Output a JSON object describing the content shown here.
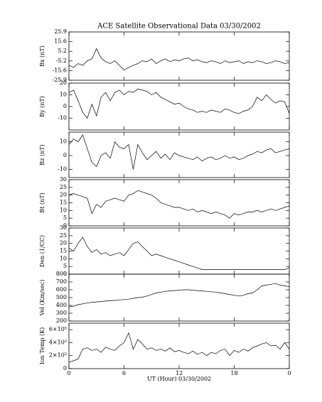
{
  "chart_data": {
    "title": "ACE Satellite Observational Data   03/30/2002",
    "xlabel": "UT (Hour)   03/30/2002",
    "xlim": [
      0,
      24
    ],
    "xticks": [
      0,
      6,
      12,
      18,
      {
        "value": 24,
        "label": "0"
      }
    ],
    "x": [
      0,
      0.5,
      1,
      1.5,
      2,
      2.5,
      3,
      3.5,
      4,
      4.5,
      5,
      5.5,
      6,
      6.5,
      7,
      7.5,
      8,
      8.5,
      9,
      9.5,
      10,
      10.5,
      11,
      11.5,
      12,
      12.5,
      13,
      13.5,
      14,
      14.5,
      15,
      15.5,
      16,
      16.5,
      17,
      17.5,
      18,
      18.5,
      19,
      19.5,
      20,
      20.5,
      21,
      21.5,
      22,
      22.5,
      23,
      23.5,
      24
    ],
    "panels": [
      {
        "type": "line",
        "ylabel": "Bx (nT)",
        "color": "#000000",
        "ylim": [
          -25.9,
          25.9
        ],
        "yticks": [
          -25.9,
          -15.6,
          -5.2,
          5.2,
          15.6,
          25.9
        ],
        "values": [
          -10,
          -12,
          -8,
          -10,
          -5,
          -3,
          8,
          -2,
          -6,
          -8,
          -5,
          -10,
          -15,
          -12,
          -10,
          -8,
          -5,
          -6,
          -3,
          -8,
          -5,
          -3,
          -6,
          -4,
          -5,
          -3,
          -2,
          -5,
          -4,
          -6,
          -7,
          -5,
          -6,
          -8,
          -5,
          -7,
          -6,
          -5,
          -8,
          -6,
          -7,
          -5,
          -6,
          -8,
          -7,
          -5,
          -6,
          -8,
          -7
        ]
      },
      {
        "type": "line",
        "ylabel": "By (nT)",
        "color": "#000000",
        "ylim": [
          -20,
          20
        ],
        "yticks": [
          -10,
          0,
          10,
          20
        ],
        "values": [
          12,
          14,
          5,
          -5,
          -10,
          2,
          -8,
          8,
          12,
          5,
          12,
          14,
          10,
          13,
          12,
          15,
          14,
          13,
          10,
          12,
          8,
          6,
          4,
          2,
          3,
          0,
          -2,
          -3,
          -5,
          -4,
          -5,
          -3,
          -4,
          -5,
          -2,
          -3,
          -5,
          -6,
          -4,
          -3,
          0,
          8,
          5,
          10,
          6,
          3,
          5,
          4,
          -6
        ]
      },
      {
        "type": "line",
        "ylabel": "Bz (nT)",
        "color": "#000000",
        "ylim": [
          -16,
          17
        ],
        "yticks": [
          -10,
          0,
          10
        ],
        "values": [
          8,
          12,
          10,
          15,
          5,
          -5,
          -8,
          0,
          2,
          -2,
          10,
          6,
          5,
          8,
          -10,
          8,
          2,
          -3,
          0,
          3,
          -2,
          1,
          -3,
          2,
          0,
          -1,
          -2,
          -3,
          -1,
          -4,
          -2,
          -1,
          -3,
          -2,
          0,
          -2,
          -1,
          -3,
          -2,
          0,
          1,
          3,
          2,
          4,
          5,
          2,
          3,
          4,
          5
        ]
      },
      {
        "type": "line",
        "ylabel": "Bt (nT)",
        "color": "#000000",
        "ylim": [
          0,
          30
        ],
        "yticks": [
          0,
          5,
          10,
          15,
          20,
          25,
          30
        ],
        "values": [
          20,
          21,
          20,
          19,
          18,
          8,
          14,
          12,
          16,
          17,
          18,
          17,
          16,
          20,
          21,
          23,
          22,
          21,
          20,
          18,
          15,
          14,
          13,
          12,
          12,
          11,
          10,
          11,
          9,
          10,
          9,
          8,
          9,
          8,
          7,
          5,
          8,
          7,
          8,
          9,
          9,
          10,
          9,
          10,
          11,
          10,
          11,
          12,
          13
        ]
      },
      {
        "type": "line",
        "ylabel": "Den (1/CC)",
        "color": "#000000",
        "ylim": [
          0,
          30
        ],
        "yticks": [
          0,
          5,
          10,
          15,
          20,
          25,
          30
        ],
        "values": [
          17,
          15,
          20,
          24,
          18,
          14,
          16,
          13,
          14,
          12,
          13,
          14,
          12,
          16,
          20,
          21,
          18,
          15,
          12,
          13,
          12,
          11,
          10,
          9,
          8,
          7,
          6,
          5,
          4,
          3,
          3,
          3,
          3,
          3,
          3,
          3,
          3,
          3,
          3,
          3,
          3,
          3,
          3,
          3,
          3,
          3,
          3,
          3,
          4
        ]
      },
      {
        "type": "line",
        "ylabel": "Vel (Km/sec)",
        "color": "#000000",
        "ylim": [
          200,
          800
        ],
        "yticks": [
          200,
          300,
          400,
          500,
          600,
          700,
          800
        ],
        "values": [
          380,
          390,
          410,
          420,
          430,
          440,
          445,
          450,
          455,
          460,
          465,
          470,
          475,
          480,
          490,
          500,
          505,
          520,
          540,
          560,
          570,
          580,
          585,
          590,
          595,
          600,
          600,
          595,
          590,
          585,
          580,
          575,
          570,
          560,
          550,
          540,
          530,
          520,
          530,
          550,
          560,
          600,
          650,
          660,
          670,
          680,
          660,
          650,
          640
        ]
      },
      {
        "type": "line",
        "ylabel": "Ion Temp (K)",
        "color": "#000000",
        "ylim": [
          0,
          700000
        ],
        "yticks": [
          0,
          {
            "value": 200000,
            "label": "2×10⁵"
          },
          {
            "value": 400000,
            "label": "4×10⁵"
          },
          {
            "value": 600000,
            "label": "6×10⁵"
          }
        ],
        "values": [
          100000,
          120000,
          150000,
          300000,
          320000,
          280000,
          300000,
          250000,
          330000,
          300000,
          280000,
          350000,
          400000,
          550000,
          300000,
          450000,
          380000,
          300000,
          320000,
          280000,
          300000,
          270000,
          320000,
          260000,
          280000,
          250000,
          230000,
          270000,
          220000,
          250000,
          200000,
          250000,
          230000,
          280000,
          300000,
          200000,
          280000,
          250000,
          300000,
          270000,
          320000,
          350000,
          380000,
          400000,
          350000,
          360000,
          300000,
          400000,
          300000
        ]
      }
    ]
  }
}
